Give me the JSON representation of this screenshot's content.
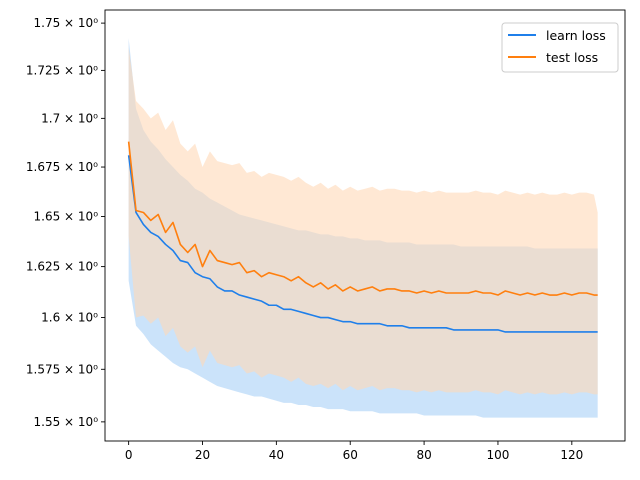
{
  "chart_data": {
    "type": "line",
    "title": "",
    "xlabel": "",
    "ylabel": "",
    "xlim": [
      -6.4,
      134.4
    ],
    "ylim": [
      1.541,
      1.757
    ],
    "yscale": "log",
    "grid": false,
    "legend_position": "top-right",
    "x_ticks": [
      0,
      20,
      40,
      60,
      80,
      100,
      120
    ],
    "x_tick_labels": [
      "0",
      "20",
      "40",
      "60",
      "80",
      "100",
      "120"
    ],
    "y_ticks": [
      1.55,
      1.575,
      1.6,
      1.625,
      1.65,
      1.675,
      1.7,
      1.725,
      1.75
    ],
    "y_tick_labels": [
      "1.55 × 10⁰",
      "1.575 × 10⁰",
      "1.6 × 10⁰",
      "1.625 × 10⁰",
      "1.65 × 10⁰",
      "1.675 × 10⁰",
      "1.7 × 10⁰",
      "1.725 × 10⁰",
      "1.75 × 10⁰"
    ],
    "x": [
      0,
      2,
      4,
      6,
      8,
      10,
      12,
      14,
      16,
      18,
      20,
      22,
      24,
      26,
      28,
      30,
      32,
      34,
      36,
      38,
      40,
      42,
      44,
      46,
      48,
      50,
      52,
      54,
      56,
      58,
      60,
      62,
      64,
      66,
      68,
      70,
      72,
      74,
      76,
      78,
      80,
      82,
      84,
      86,
      88,
      90,
      92,
      94,
      96,
      98,
      100,
      102,
      104,
      106,
      108,
      110,
      112,
      114,
      116,
      118,
      120,
      122,
      124,
      126,
      127
    ],
    "series": [
      {
        "name": "learn loss",
        "color": "#1f7fea",
        "band_color": "#a9d0f7",
        "values": [
          1.681,
          1.652,
          1.646,
          1.642,
          1.64,
          1.636,
          1.633,
          1.628,
          1.627,
          1.622,
          1.62,
          1.619,
          1.615,
          1.613,
          1.613,
          1.611,
          1.61,
          1.609,
          1.608,
          1.606,
          1.606,
          1.604,
          1.604,
          1.603,
          1.602,
          1.601,
          1.6,
          1.6,
          1.599,
          1.598,
          1.598,
          1.597,
          1.597,
          1.597,
          1.597,
          1.596,
          1.596,
          1.596,
          1.595,
          1.595,
          1.595,
          1.595,
          1.595,
          1.595,
          1.594,
          1.594,
          1.594,
          1.594,
          1.594,
          1.594,
          1.594,
          1.593,
          1.593,
          1.593,
          1.593,
          1.593,
          1.593,
          1.593,
          1.593,
          1.593,
          1.593,
          1.593,
          1.593,
          1.593,
          1.593
        ],
        "lower": [
          1.618,
          1.596,
          1.592,
          1.587,
          1.584,
          1.581,
          1.578,
          1.576,
          1.575,
          1.573,
          1.571,
          1.569,
          1.567,
          1.566,
          1.565,
          1.564,
          1.563,
          1.562,
          1.562,
          1.561,
          1.56,
          1.559,
          1.559,
          1.558,
          1.558,
          1.557,
          1.557,
          1.556,
          1.556,
          1.556,
          1.555,
          1.555,
          1.555,
          1.555,
          1.554,
          1.554,
          1.554,
          1.554,
          1.554,
          1.554,
          1.553,
          1.553,
          1.553,
          1.553,
          1.553,
          1.553,
          1.553,
          1.553,
          1.552,
          1.552,
          1.552,
          1.552,
          1.552,
          1.552,
          1.552,
          1.552,
          1.552,
          1.552,
          1.552,
          1.552,
          1.552,
          1.552,
          1.552,
          1.552,
          1.552
        ],
        "upper": [
          1.742,
          1.705,
          1.694,
          1.688,
          1.684,
          1.679,
          1.675,
          1.671,
          1.668,
          1.664,
          1.662,
          1.659,
          1.657,
          1.655,
          1.653,
          1.651,
          1.65,
          1.649,
          1.648,
          1.647,
          1.646,
          1.645,
          1.644,
          1.643,
          1.643,
          1.642,
          1.641,
          1.641,
          1.64,
          1.64,
          1.639,
          1.639,
          1.638,
          1.638,
          1.638,
          1.637,
          1.637,
          1.637,
          1.637,
          1.636,
          1.636,
          1.636,
          1.636,
          1.636,
          1.636,
          1.635,
          1.635,
          1.635,
          1.635,
          1.635,
          1.635,
          1.635,
          1.635,
          1.635,
          1.635,
          1.634,
          1.634,
          1.634,
          1.634,
          1.634,
          1.634,
          1.634,
          1.634,
          1.634,
          1.634
        ]
      },
      {
        "name": "test loss",
        "color": "#ff7f0e",
        "band_color": "#ffd9b8",
        "values": [
          1.688,
          1.653,
          1.652,
          1.648,
          1.651,
          1.642,
          1.647,
          1.636,
          1.632,
          1.636,
          1.625,
          1.633,
          1.628,
          1.627,
          1.626,
          1.627,
          1.622,
          1.623,
          1.62,
          1.622,
          1.621,
          1.62,
          1.618,
          1.62,
          1.617,
          1.615,
          1.617,
          1.614,
          1.616,
          1.613,
          1.615,
          1.613,
          1.614,
          1.615,
          1.613,
          1.614,
          1.614,
          1.613,
          1.613,
          1.612,
          1.613,
          1.612,
          1.613,
          1.612,
          1.612,
          1.612,
          1.612,
          1.613,
          1.612,
          1.612,
          1.611,
          1.613,
          1.612,
          1.611,
          1.612,
          1.611,
          1.612,
          1.611,
          1.611,
          1.612,
          1.611,
          1.612,
          1.612,
          1.611,
          1.611
        ],
        "lower": [
          1.64,
          1.6,
          1.601,
          1.597,
          1.6,
          1.591,
          1.595,
          1.586,
          1.583,
          1.586,
          1.576,
          1.584,
          1.578,
          1.577,
          1.576,
          1.577,
          1.573,
          1.574,
          1.571,
          1.573,
          1.572,
          1.571,
          1.569,
          1.571,
          1.568,
          1.567,
          1.568,
          1.566,
          1.568,
          1.565,
          1.567,
          1.565,
          1.566,
          1.567,
          1.565,
          1.566,
          1.566,
          1.565,
          1.565,
          1.564,
          1.565,
          1.564,
          1.565,
          1.564,
          1.564,
          1.564,
          1.564,
          1.565,
          1.564,
          1.564,
          1.563,
          1.565,
          1.564,
          1.563,
          1.564,
          1.563,
          1.564,
          1.563,
          1.563,
          1.564,
          1.563,
          1.564,
          1.564,
          1.563,
          1.563
        ],
        "upper": [
          1.737,
          1.709,
          1.705,
          1.7,
          1.703,
          1.694,
          1.699,
          1.687,
          1.683,
          1.687,
          1.675,
          1.683,
          1.678,
          1.677,
          1.676,
          1.677,
          1.672,
          1.673,
          1.67,
          1.672,
          1.671,
          1.67,
          1.668,
          1.67,
          1.667,
          1.665,
          1.667,
          1.664,
          1.666,
          1.663,
          1.665,
          1.663,
          1.664,
          1.665,
          1.663,
          1.664,
          1.664,
          1.663,
          1.663,
          1.662,
          1.663,
          1.662,
          1.663,
          1.662,
          1.662,
          1.662,
          1.662,
          1.663,
          1.662,
          1.662,
          1.661,
          1.663,
          1.662,
          1.661,
          1.662,
          1.661,
          1.662,
          1.661,
          1.661,
          1.662,
          1.661,
          1.662,
          1.662,
          1.661,
          1.652
        ]
      }
    ]
  }
}
